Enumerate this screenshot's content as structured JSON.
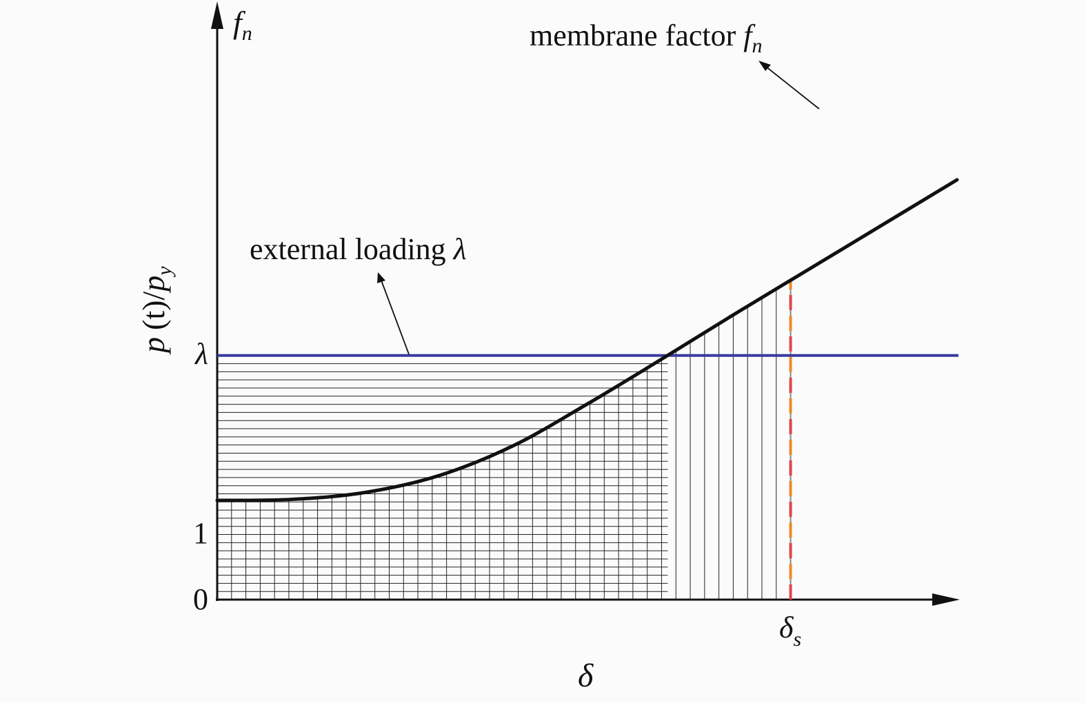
{
  "colors": {
    "background": "#fbfbfb",
    "curve": "#111111",
    "axes": "#111111",
    "loading_line": "#3a3aa0",
    "hatch": "#222222",
    "ds_line_dash_a": "#e0474c",
    "ds_line_dash_b": "#f08a24",
    "ds_line_gap": "#888888"
  },
  "labels": {
    "y_axis_symbol_base": "f",
    "y_axis_symbol_sub": "n",
    "y_axis_title_p": "p",
    "y_axis_title_t": "(t)/",
    "y_axis_title_p2": "p",
    "y_axis_title_sub": "y",
    "x_axis_symbol": "δ",
    "tick_zero": "0",
    "tick_one": "1",
    "tick_lambda": "λ",
    "tick_ds_base": "δ",
    "tick_ds_sub": "s",
    "membrane_text": "membrane factor ",
    "membrane_f": "f",
    "membrane_sub": "n",
    "loading_text": "external loading ",
    "loading_lambda": "λ"
  },
  "chart_data": {
    "type": "line",
    "series": [
      {
        "name": "membrane factor f_n",
        "description": "starts at 1 with zero slope, curves upward, then becomes linear",
        "x": [
          0.0,
          0.1,
          0.2,
          0.3,
          0.4,
          0.5,
          0.6,
          0.7,
          0.8,
          0.9,
          1.0
        ],
        "y": [
          1.0,
          1.01,
          1.08,
          1.25,
          1.55,
          1.97,
          2.42,
          2.88,
          3.33,
          3.78,
          4.23
        ]
      },
      {
        "name": "external loading λ",
        "x": [
          0.0,
          1.0
        ],
        "y": [
          2.46,
          2.46
        ]
      }
    ],
    "markers": {
      "delta_s_x": 0.775,
      "lambda_y": 2.46
    },
    "hatched_regions": [
      "vertical hatch: under membrane factor curve from 0 to δs",
      "horizontal hatch: under loading λ from 0 to the intersection with f_n"
    ]
  }
}
